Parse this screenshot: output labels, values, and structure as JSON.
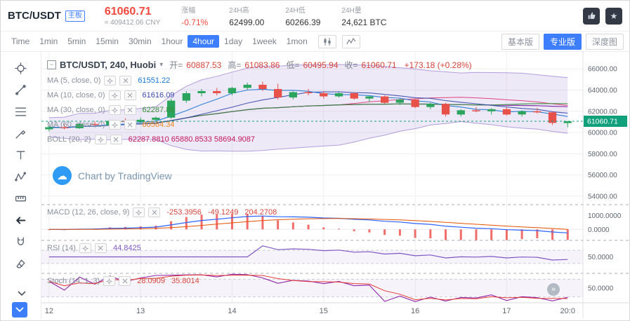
{
  "header": {
    "symbol": "BTC/USDT",
    "board_badge": "主板",
    "price": "61060.71",
    "price_cny": "≈ 409412.06 CNY",
    "stats": [
      {
        "key": "change",
        "label": "涨幅",
        "value": "-0.71%",
        "color": "#f0483e"
      },
      {
        "key": "high-24h",
        "label": "24H高",
        "value": "62499.00"
      },
      {
        "key": "low-24h",
        "label": "24H低",
        "value": "60266.39"
      },
      {
        "key": "volume-24h",
        "label": "24H量",
        "value": "24,621 BTC"
      }
    ]
  },
  "toolbar": {
    "intervals": [
      "Time",
      "1min",
      "5min",
      "15min",
      "30min",
      "1hour",
      "4hour",
      "1day",
      "1week",
      "1mon"
    ],
    "active_interval": "4hour",
    "modes": [
      {
        "key": "basic",
        "label": "基本版"
      },
      {
        "key": "pro",
        "label": "专业版"
      },
      {
        "key": "depth",
        "label": "深度图"
      }
    ],
    "active_mode": "pro"
  },
  "sidebar": {
    "tools": [
      {
        "key": "crosshair"
      },
      {
        "key": "trend-line"
      },
      {
        "key": "fib-lines"
      },
      {
        "key": "brush"
      },
      {
        "key": "text"
      },
      {
        "key": "pattern"
      },
      {
        "key": "measure"
      },
      {
        "key": "back-arrow"
      },
      {
        "key": "magnet"
      },
      {
        "key": "eraser"
      }
    ]
  },
  "legend": {
    "title": "BTC/USDT, 240, Huobi",
    "ohlc": [
      {
        "key": "open",
        "label": "开",
        "value": "60887.53"
      },
      {
        "key": "high",
        "label": "高",
        "value": "61083.86"
      },
      {
        "key": "low",
        "label": "低",
        "value": "60495.94"
      },
      {
        "key": "close",
        "label": "收",
        "value": "61060.71"
      }
    ],
    "change": "+173.18 (+0.28%)",
    "studies": [
      {
        "name": "MA (5, close, 0)",
        "value": "61551.22",
        "color": "#1976d2"
      },
      {
        "name": "MA (10, close, 0)",
        "value": "61616.09",
        "color": "#3949ab"
      },
      {
        "name": "MA (30, close, 0)",
        "value": "62287.88",
        "color": "#388e3c"
      },
      {
        "name": "MA (60, close, 0)",
        "value": "60564.34",
        "color": "#e8871e"
      },
      {
        "name": "BOLL (20, 2)",
        "value": "62287.8810  65880.8533  58694.9087",
        "color": "#c2185b"
      }
    ]
  },
  "panels": {
    "macd": {
      "name": "MACD (12, 26, close, 9)",
      "values": [
        "-253.3956",
        "-49.1249",
        "204.2708"
      ],
      "value_color": "#d6453c"
    },
    "rsi": {
      "name": "RSI (14)",
      "values": [
        "44.8425"
      ],
      "value_color": "#7e57c2"
    },
    "stoch": {
      "name": "Stoch (14, 1, 3)",
      "values": [
        "28.0909",
        "35.8014"
      ],
      "value_color": "#d6453c"
    }
  },
  "watermark": "Chart by TradingView",
  "axis": {
    "price_ticks": [
      "66000.00",
      "64000.00",
      "62000.00",
      "60000.00",
      "58000.00",
      "56000.00",
      "54000.00"
    ],
    "macd_ticks": [
      "1000.0000",
      "0.0000"
    ],
    "rsi_ticks": [
      "50.0000"
    ],
    "stoch_ticks": [
      "50.0000"
    ],
    "time_labels": [
      "12",
      "13",
      "14",
      "15",
      "16",
      "17",
      "20:0"
    ],
    "price_tag": "61060.71"
  },
  "chart_data": {
    "type": "candlestick",
    "symbol": "BTC/USDT",
    "interval": "240",
    "exchange": "Huobi",
    "title": "BTC/USDT, 240, Huobi",
    "price_axis": {
      "min": 53200,
      "max": 67600,
      "ticks": [
        66000,
        64000,
        62000,
        60000,
        58000,
        56000,
        54000
      ]
    },
    "macd_axis": {
      "min": -800,
      "max": 1800,
      "ticks": [
        1000,
        0
      ]
    },
    "day_indices": [
      0,
      6,
      12,
      18,
      24,
      30
    ],
    "label_indices": [
      0,
      6,
      12,
      18,
      24,
      30,
      34
    ],
    "last_close": 61060.71,
    "candles": [
      [
        60300,
        60650,
        60100,
        60500
      ],
      [
        60500,
        60800,
        60300,
        60400
      ],
      [
        60400,
        60900,
        60350,
        60800
      ],
      [
        60800,
        61050,
        60600,
        60700
      ],
      [
        60700,
        61200,
        60650,
        61100
      ],
      [
        61100,
        61350,
        60900,
        61000
      ],
      [
        61000,
        61400,
        60800,
        61200
      ],
      [
        61200,
        61500,
        61000,
        61400
      ],
      [
        61400,
        63200,
        61300,
        63000
      ],
      [
        63000,
        63900,
        62800,
        63700
      ],
      [
        63700,
        64100,
        63400,
        63900
      ],
      [
        63900,
        64200,
        63500,
        63700
      ],
      [
        63700,
        64300,
        63500,
        64200
      ],
      [
        64200,
        64700,
        64000,
        64500
      ],
      [
        64500,
        64800,
        63900,
        64100
      ],
      [
        64100,
        64600,
        63100,
        63300
      ],
      [
        63300,
        63900,
        63100,
        63800
      ],
      [
        63800,
        64100,
        63500,
        63700
      ],
      [
        63700,
        63900,
        63200,
        63400
      ],
      [
        63400,
        63800,
        63300,
        63700
      ],
      [
        63700,
        63800,
        63100,
        63200
      ],
      [
        63200,
        63500,
        62900,
        63400
      ],
      [
        63400,
        63500,
        62700,
        62800
      ],
      [
        62800,
        63200,
        62600,
        63100
      ],
      [
        63100,
        63200,
        62300,
        62400
      ],
      [
        62400,
        62800,
        62200,
        62700
      ],
      [
        62700,
        62800,
        61500,
        61700
      ],
      [
        61700,
        62200,
        61500,
        62100
      ],
      [
        62100,
        62400,
        61900,
        62000
      ],
      [
        62000,
        62300,
        61700,
        62200
      ],
      [
        62200,
        62400,
        61600,
        61700
      ],
      [
        61700,
        62100,
        61500,
        62000
      ],
      [
        62000,
        62300,
        61800,
        61900
      ],
      [
        61900,
        62000,
        60700,
        60900
      ],
      [
        60887.53,
        61083.86,
        60495.94,
        61060.71
      ]
    ]
  },
  "colors": {
    "up": "#2ba55d",
    "down": "#e8504a",
    "accent_blue": "#3d7eff",
    "price_red": "#f0483e",
    "ma5": "#1976d2",
    "ma10": "#3949ab",
    "ma30": "#388e3c",
    "ma60": "#7b1fa2",
    "boll_band": "#7e57c2",
    "boll_mid": "#d81b60",
    "macd_line": "#2962ff",
    "macd_signal": "#e65100",
    "macd_hist": "#ef5350",
    "rsi": "#7e57c2",
    "stoch_k": "#8e24aa",
    "stoch_d": "#e53935",
    "price_tag_bg": "#11a07c"
  }
}
